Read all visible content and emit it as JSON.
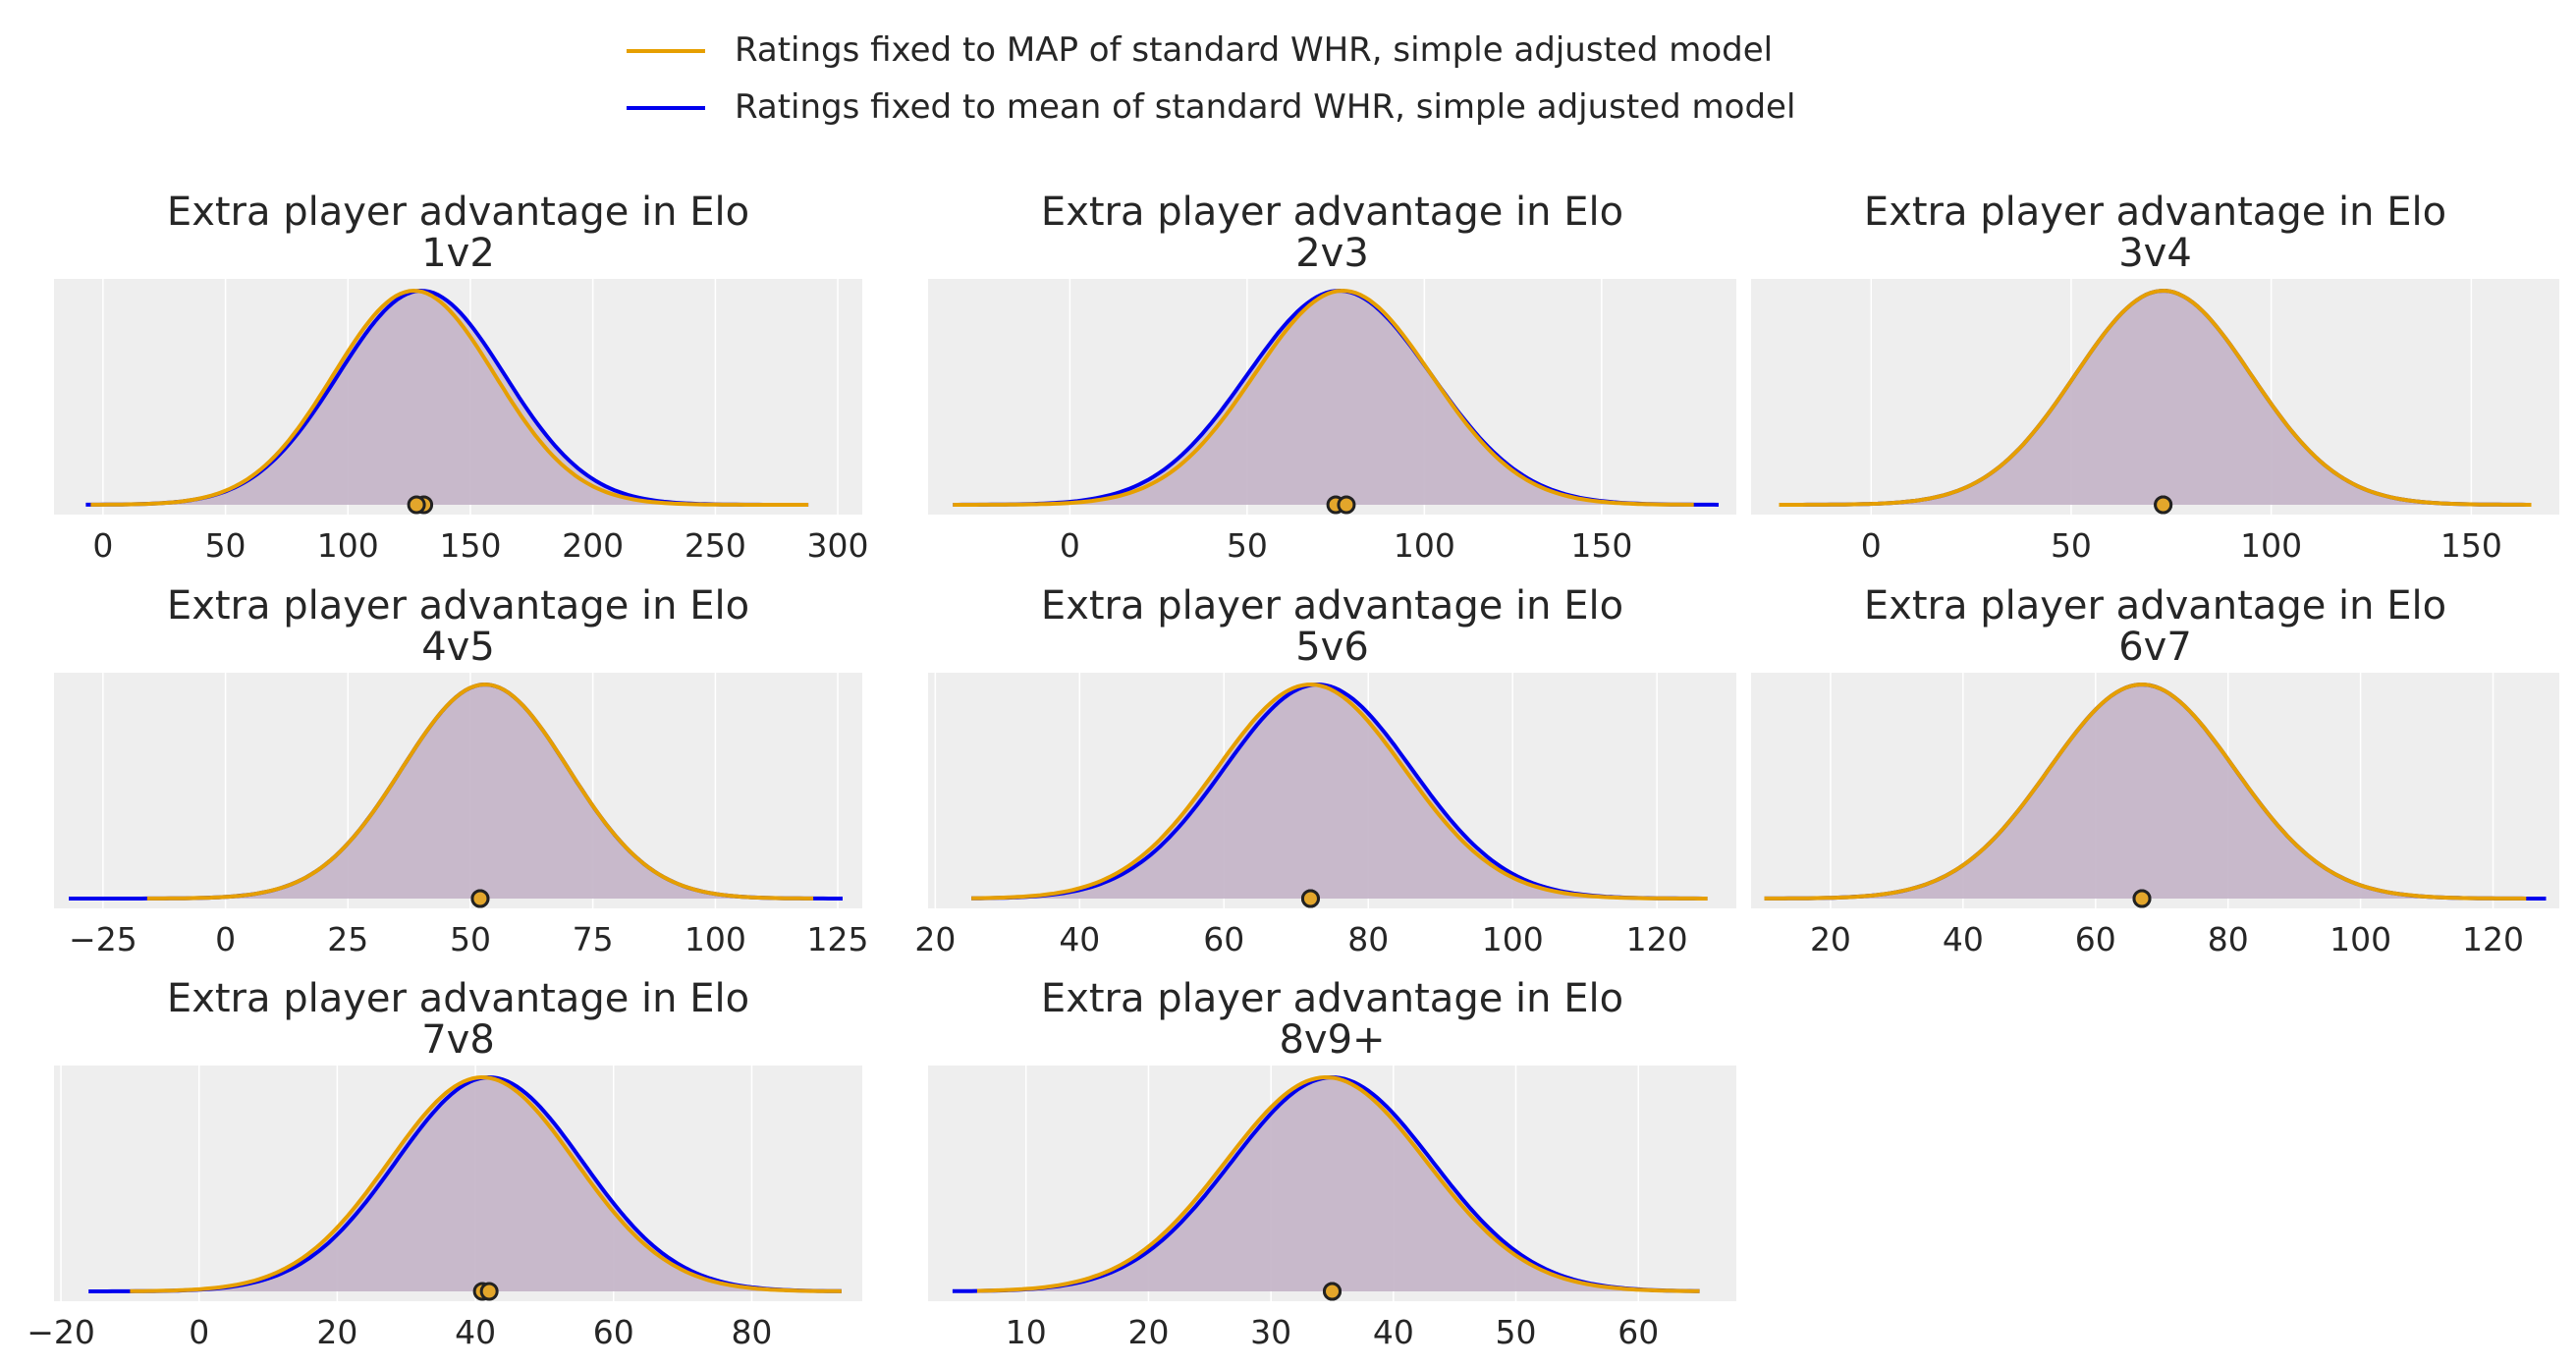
{
  "legend": {
    "placement": "top-center",
    "entries": [
      {
        "label": "Ratings fixed to MAP of standard WHR, simple adjusted model",
        "color": "#E69F00"
      },
      {
        "label": "Ratings fixed to mean of standard WHR, simple adjusted model",
        "color": "#0000EE"
      }
    ]
  },
  "style": {
    "plot_background": "#EEEEEE",
    "grid": "on",
    "fill_color": "#C5B6C8",
    "point_fill": "#E3A62B",
    "point_stroke": "#222222"
  },
  "chart_data": [
    {
      "type": "area",
      "title": "Extra player advantage in Elo",
      "subtitle": "1v2",
      "xticks": [
        0,
        50,
        100,
        150,
        200,
        250,
        300
      ],
      "xlim": [
        -20,
        310
      ],
      "series": [
        {
          "key": "map",
          "mean": 127,
          "sd": 33,
          "range": [
            -5,
            288
          ],
          "point": 128
        },
        {
          "key": "mean",
          "mean": 130,
          "sd": 34,
          "range": [
            -7,
            288
          ],
          "point": 131
        }
      ]
    },
    {
      "type": "area",
      "title": "Extra player advantage in Elo",
      "subtitle": "2v3",
      "xticks": [
        0,
        50,
        100,
        150
      ],
      "xlim": [
        -40,
        188
      ],
      "series": [
        {
          "key": "map",
          "mean": 77,
          "sd": 25,
          "range": [
            -33,
            176
          ],
          "point": 78
        },
        {
          "key": "mean",
          "mean": 76,
          "sd": 26,
          "range": [
            -33,
            183
          ],
          "point": 75
        }
      ]
    },
    {
      "type": "area",
      "title": "Extra player advantage in Elo",
      "subtitle": "3v4",
      "xticks": [
        0,
        50,
        100,
        150
      ],
      "xlim": [
        -30,
        172
      ],
      "series": [
        {
          "key": "map",
          "mean": 73,
          "sd": 22,
          "range": [
            -23,
            165
          ],
          "point": 73
        },
        {
          "key": "mean",
          "mean": 73,
          "sd": 22,
          "range": [
            -23,
            165
          ],
          "point": 73
        }
      ]
    },
    {
      "type": "area",
      "title": "Extra player advantage in Elo",
      "subtitle": "4v5",
      "xticks": [
        -25,
        0,
        25,
        50,
        75,
        100,
        125
      ],
      "xlim": [
        -35,
        130
      ],
      "series": [
        {
          "key": "map",
          "mean": 53,
          "sd": 17,
          "range": [
            -16,
            120
          ],
          "point": 52
        },
        {
          "key": "mean",
          "mean": 53,
          "sd": 17,
          "range": [
            -32,
            126
          ],
          "point": 52
        }
      ]
    },
    {
      "type": "area",
      "title": "Extra player advantage in Elo",
      "subtitle": "5v6",
      "xticks": [
        20,
        40,
        60,
        80,
        100,
        120
      ],
      "xlim": [
        19,
        131
      ],
      "series": [
        {
          "key": "map",
          "mean": 72,
          "sd": 13,
          "range": [
            25,
            127
          ],
          "point": 72
        },
        {
          "key": "mean",
          "mean": 73,
          "sd": 13,
          "range": [
            25,
            127
          ],
          "point": 72
        }
      ]
    },
    {
      "type": "area",
      "title": "Extra player advantage in Elo",
      "subtitle": "6v7",
      "xticks": [
        20,
        40,
        60,
        80,
        100,
        120
      ],
      "xlim": [
        8,
        130
      ],
      "series": [
        {
          "key": "map",
          "mean": 67,
          "sd": 14,
          "range": [
            10,
            125
          ],
          "point": 67
        },
        {
          "key": "mean",
          "mean": 67,
          "sd": 14,
          "range": [
            10,
            128
          ],
          "point": 67
        }
      ]
    },
    {
      "type": "area",
      "title": "Extra player advantage in Elo",
      "subtitle": "7v8",
      "xticks": [
        -20,
        0,
        20,
        40,
        60,
        80
      ],
      "xlim": [
        -21,
        96
      ],
      "series": [
        {
          "key": "map",
          "mean": 41,
          "sd": 13.5,
          "range": [
            -10,
            93
          ],
          "point": 42
        },
        {
          "key": "mean",
          "mean": 42,
          "sd": 13.5,
          "range": [
            -16,
            93
          ],
          "point": 41
        }
      ]
    },
    {
      "type": "area",
      "title": "Extra player advantage in Elo",
      "subtitle": "8v9+",
      "xticks": [
        10,
        20,
        30,
        40,
        50,
        60
      ],
      "xlim": [
        2,
        68
      ],
      "series": [
        {
          "key": "map",
          "mean": 34.5,
          "sd": 8.2,
          "range": [
            6,
            65
          ],
          "point": 35
        },
        {
          "key": "mean",
          "mean": 35,
          "sd": 8.2,
          "range": [
            4,
            65
          ],
          "point": 35
        }
      ]
    }
  ]
}
